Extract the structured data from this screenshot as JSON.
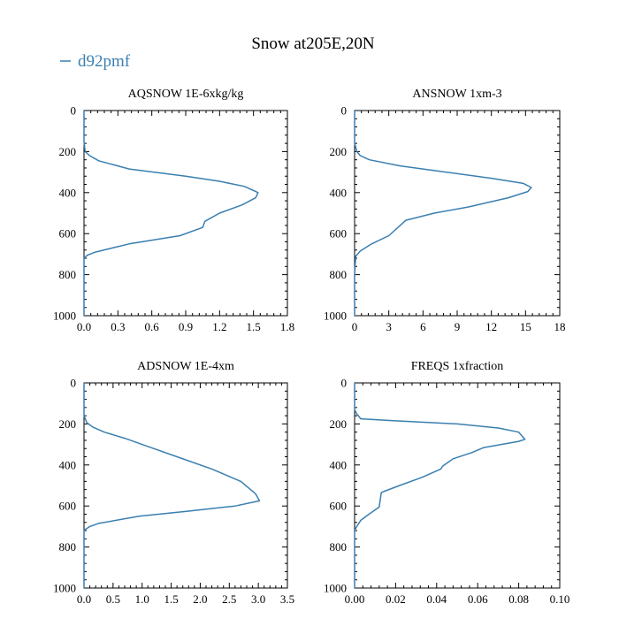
{
  "figure": {
    "title": "Snow at205E,20N",
    "legend": {
      "label": "d92pmf",
      "color": "#3a7fb0",
      "placement": "top-left"
    }
  },
  "chart_data": [
    {
      "type": "line",
      "title": "AQSNOW  1E-6xkg/kg",
      "xlim": [
        0,
        1.8
      ],
      "ylim": [
        1000,
        0
      ],
      "xticks": [
        "0.0",
        "0.3",
        "0.6",
        "0.9",
        "1.2",
        "1.5",
        "1.8"
      ],
      "yticks": [
        "0",
        "200",
        "400",
        "600",
        "800",
        "1000"
      ],
      "series": [
        {
          "name": "d92pmf",
          "x": [
            0,
            0,
            0.01,
            0.05,
            0.13,
            0.4,
            0.9,
            1.2,
            1.42,
            1.52,
            1.54,
            1.52,
            1.4,
            1.2,
            1.07,
            1.05,
            0.85,
            0.4,
            0.1,
            0.03,
            0,
            0,
            0
          ],
          "y": [
            0,
            150,
            200,
            220,
            245,
            285,
            320,
            345,
            370,
            395,
            400,
            425,
            460,
            500,
            540,
            570,
            610,
            650,
            690,
            705,
            720,
            800,
            1000
          ]
        }
      ]
    },
    {
      "type": "line",
      "title": "ANSNOW  1xm-3",
      "xlim": [
        0,
        18
      ],
      "ylim": [
        1000,
        0
      ],
      "xticks": [
        "0",
        "3",
        "6",
        "9",
        "12",
        "15",
        "18"
      ],
      "yticks": [
        "0",
        "200",
        "400",
        "600",
        "800",
        "1000"
      ],
      "series": [
        {
          "name": "d92pmf",
          "x": [
            0,
            0,
            0.2,
            0.5,
            1.3,
            4,
            8,
            12,
            14.8,
            15.5,
            15.2,
            13.5,
            10,
            7,
            4.5,
            3,
            1.5,
            0.5,
            0.1,
            0,
            0
          ],
          "y": [
            0,
            160,
            200,
            220,
            240,
            270,
            300,
            330,
            355,
            375,
            395,
            425,
            470,
            500,
            535,
            610,
            650,
            685,
            710,
            800,
            1000
          ]
        }
      ]
    },
    {
      "type": "line",
      "title": "ADSNOW  1E-4xm",
      "xlim": [
        0,
        3.5
      ],
      "ylim": [
        1000,
        0
      ],
      "xticks": [
        "0.0",
        "0.5",
        "1.0",
        "1.5",
        "2.0",
        "2.5",
        "3.0",
        "3.5"
      ],
      "yticks": [
        "0",
        "200",
        "400",
        "600",
        "800",
        "1000"
      ],
      "series": [
        {
          "name": "d92pmf",
          "x": [
            0,
            0,
            0.05,
            0.15,
            0.35,
            0.7,
            1.1,
            1.6,
            2.2,
            2.7,
            2.95,
            3.02,
            2.6,
            1.8,
            0.95,
            0.25,
            0.1,
            0.02,
            0,
            0
          ],
          "y": [
            0,
            160,
            195,
            215,
            240,
            270,
            310,
            360,
            420,
            480,
            540,
            575,
            600,
            625,
            650,
            685,
            700,
            715,
            720,
            1000
          ]
        }
      ]
    },
    {
      "type": "line",
      "title": "FREQS  1xfraction",
      "xlim": [
        0,
        0.1
      ],
      "ylim": [
        1000,
        0
      ],
      "xticks": [
        "0.00",
        "0.02",
        "0.04",
        "0.06",
        "0.08",
        "0.10"
      ],
      "yticks": [
        "0",
        "200",
        "400",
        "600",
        "800",
        "1000"
      ],
      "series": [
        {
          "name": "d92pmf",
          "x": [
            0,
            0,
            0.001,
            0.003,
            0.02,
            0.05,
            0.07,
            0.08,
            0.083,
            0.08,
            0.063,
            0.057,
            0.048,
            0.043,
            0.042,
            0.033,
            0.022,
            0.014,
            0.013,
            0.012,
            0.007,
            0.003,
            0.001,
            0,
            0
          ],
          "y": [
            0,
            130,
            150,
            175,
            185,
            200,
            220,
            240,
            275,
            285,
            315,
            340,
            370,
            405,
            420,
            460,
            500,
            530,
            535,
            605,
            640,
            670,
            700,
            720,
            1000
          ]
        }
      ]
    }
  ]
}
